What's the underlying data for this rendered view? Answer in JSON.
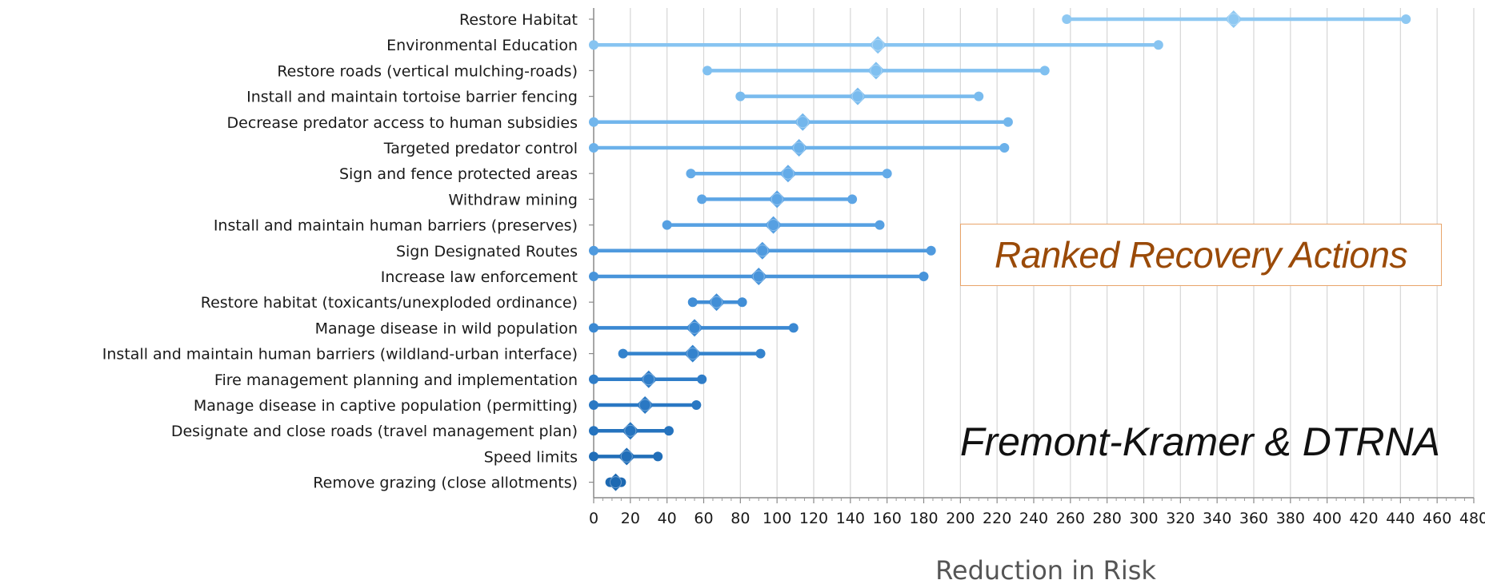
{
  "chart_data": {
    "type": "range",
    "xlabel": "Reduction in Risk",
    "xlim": [
      0,
      480
    ],
    "x_ticks": [
      0,
      20,
      40,
      60,
      80,
      100,
      120,
      140,
      160,
      180,
      200,
      220,
      240,
      260,
      280,
      300,
      320,
      340,
      360,
      380,
      400,
      420,
      440,
      460,
      480
    ],
    "grid": "vertical",
    "categories": [
      "Restore Habitat",
      "Environmental Education",
      "Restore roads (vertical mulching-roads)",
      "Install and maintain tortoise barrier fencing",
      "Decrease predator access to human subsidies",
      "Targeted predator control",
      "Sign and fence protected areas",
      "Withdraw mining",
      "Install and maintain human barriers (preserves)",
      "Sign Designated Routes",
      "Increase law enforcement",
      "Restore habitat (toxicants/unexploded ordinance)",
      "Manage disease in wild population",
      "Install and maintain human barriers (wildland-urban interface)",
      "Fire management planning and implementation",
      "Manage disease in captive population (permitting)",
      "Designate and close roads (travel management plan)",
      "Speed limits",
      "Remove grazing (close allotments)"
    ],
    "low": [
      258,
      0,
      62,
      80,
      0,
      0,
      53,
      59,
      40,
      0,
      0,
      54,
      0,
      16,
      0,
      0,
      0,
      0,
      9
    ],
    "mid": [
      349,
      155,
      154,
      144,
      114,
      112,
      106,
      100,
      98,
      92,
      90,
      67,
      55,
      54,
      30,
      28,
      20,
      18,
      12
    ],
    "high": [
      443,
      308,
      246,
      210,
      226,
      224,
      160,
      141,
      156,
      184,
      180,
      81,
      109,
      91,
      59,
      56,
      41,
      35,
      15
    ],
    "colors": [
      "#8ec8f2",
      "#87c4f1",
      "#80c0f0",
      "#79bbee",
      "#72b6ec",
      "#6bb1ea",
      "#64abe8",
      "#5da5e5",
      "#56a0e2",
      "#4f9ade",
      "#4894da",
      "#418ed6",
      "#3a88d2",
      "#3483cd",
      "#2f7dc8",
      "#2a78c3",
      "#2573be",
      "#216eb8",
      "#1d69b2"
    ],
    "annotations": [
      "Ranked Recovery Actions",
      "Fremont-Kramer & DTRNA"
    ]
  }
}
